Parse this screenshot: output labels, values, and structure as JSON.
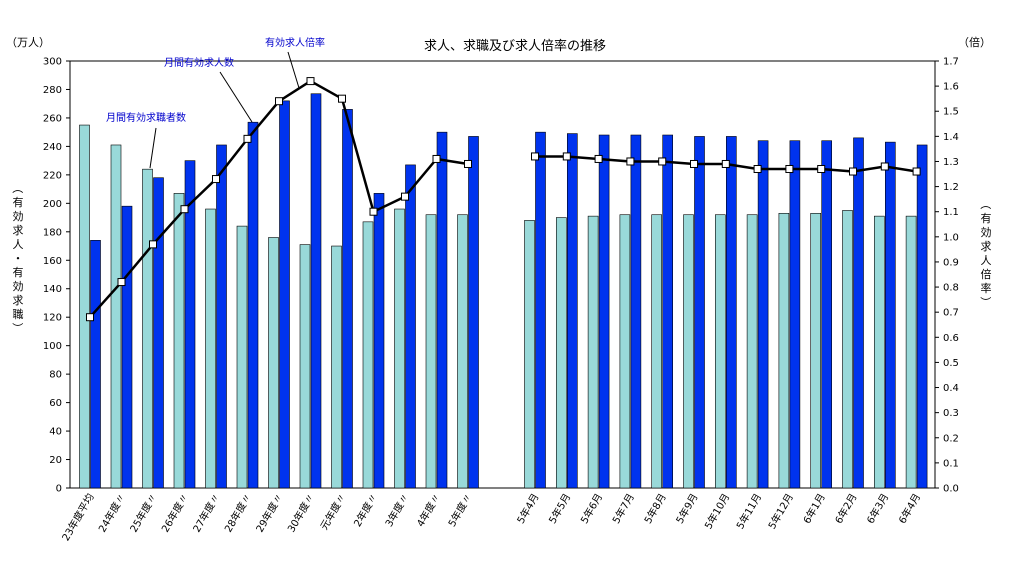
{
  "chart_data": {
    "type": "bar",
    "title": "求人、求職及び求人倍率の推移",
    "left_unit": "（万人）",
    "right_unit": "（倍）",
    "left_axis_label": [
      "（",
      "有",
      "効",
      "求",
      "人",
      "・",
      "有",
      "効",
      "求",
      "職",
      "）"
    ],
    "right_axis_label": [
      "（",
      "有",
      "効",
      "求",
      "人",
      "倍",
      "率",
      "）"
    ],
    "left_ylim": [
      0,
      300
    ],
    "left_ticks": [
      "0",
      "20",
      "40",
      "60",
      "80",
      "100",
      "120",
      "140",
      "160",
      "180",
      "200",
      "220",
      "240",
      "260",
      "280",
      "300"
    ],
    "right_ylim": [
      0.0,
      1.7
    ],
    "right_ticks": [
      "0.0",
      "0.1",
      "0.2",
      "0.3",
      "0.4",
      "0.5",
      "0.6",
      "0.7",
      "0.8",
      "0.9",
      "1.0",
      "1.1",
      "1.2",
      "1.3",
      "1.4",
      "1.5",
      "1.6",
      "1.7"
    ],
    "categories": [
      "23年度平均",
      "24年度〃",
      "25年度〃",
      "26年度〃",
      "27年度〃",
      "28年度〃",
      "29年度〃",
      "30年度〃",
      "元年度〃",
      "2年度〃",
      "3年度〃",
      "4年度〃",
      "5年度〃",
      "5年4月",
      "5年5月",
      "5年6月",
      "5年7月",
      "5年8月",
      "5年9月",
      "5年10月",
      "5年11月",
      "5年12月",
      "6年1月",
      "6年2月",
      "6年3月",
      "6年4月"
    ],
    "series": [
      {
        "name": "月間有効求職者数",
        "color": "#99d9d9",
        "values": [
          255,
          241,
          224,
          207,
          196,
          184,
          176,
          171,
          170,
          187,
          196,
          192,
          192,
          188,
          190,
          191,
          192,
          192,
          192,
          192,
          192,
          193,
          193,
          195,
          191,
          191
        ]
      },
      {
        "name": "月間有効求人数",
        "color": "#0033ee",
        "values": [
          174,
          198,
          218,
          230,
          241,
          257,
          272,
          277,
          266,
          207,
          227,
          250,
          247,
          250,
          249,
          248,
          248,
          248,
          247,
          247,
          244,
          244,
          244,
          246,
          243,
          241
        ]
      },
      {
        "name": "有効求人倍率",
        "axis": "right",
        "values": [
          0.68,
          0.82,
          0.97,
          1.11,
          1.23,
          1.39,
          1.54,
          1.62,
          1.55,
          1.1,
          1.16,
          1.31,
          1.29,
          1.32,
          1.32,
          1.31,
          1.3,
          1.3,
          1.29,
          1.29,
          1.27,
          1.27,
          1.27,
          1.26,
          1.28,
          1.26
        ]
      }
    ],
    "legend": "annotations"
  }
}
